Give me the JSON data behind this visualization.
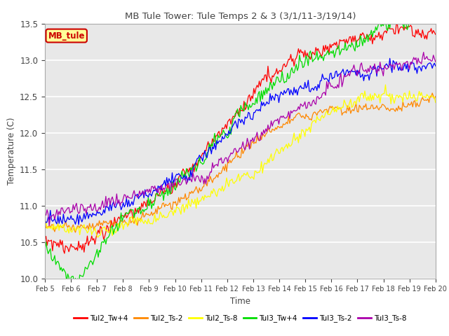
{
  "title": "MB Tule Tower: Tule Temps 2 & 3 (3/1/11-3/19/14)",
  "xlabel": "Time",
  "ylabel": "Temperature (C)",
  "ylim": [
    10.0,
    13.5
  ],
  "yticks": [
    10.0,
    10.5,
    11.0,
    11.5,
    12.0,
    12.5,
    13.0,
    13.5
  ],
  "xtick_labels": [
    "Feb 5",
    "Feb 6",
    "Feb 7",
    "Feb 8",
    "Feb 9",
    "Feb 10",
    "Feb 11",
    "Feb 12",
    "Feb 13",
    "Feb 14",
    "Feb 15",
    "Feb 16",
    "Feb 17",
    "Feb 18",
    "Feb 19",
    "Feb 20"
  ],
  "series": [
    {
      "name": "Tul2_Tw+4",
      "color": "#ff0000"
    },
    {
      "name": "Tul2_Ts-2",
      "color": "#ff8800"
    },
    {
      "name": "Tul2_Ts-8",
      "color": "#ffff00"
    },
    {
      "name": "Tul3_Tw+4",
      "color": "#00dd00"
    },
    {
      "name": "Tul3_Ts-2",
      "color": "#0000ff"
    },
    {
      "name": "Tul3_Ts-8",
      "color": "#aa00aa"
    }
  ],
  "legend_label": "MB_tule",
  "legend_bg": "#ffff99",
  "legend_border": "#cc0000",
  "grid_color": "#d8d8d8",
  "bg_color": "#e8e8e8",
  "fig_bg": "#ffffff"
}
